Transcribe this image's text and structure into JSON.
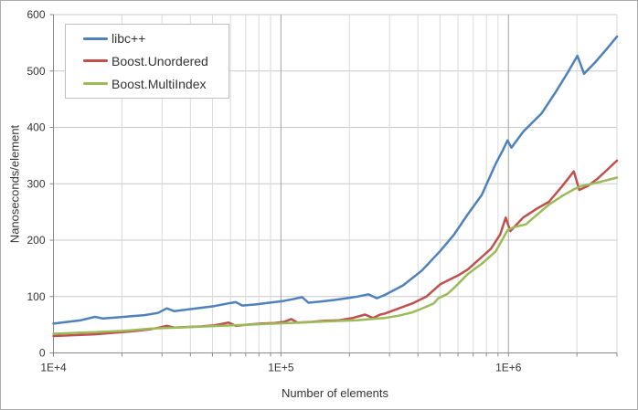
{
  "colors": {
    "background": "#ffffff",
    "chart_border": "#ababab",
    "grid_horizontal": "#c9c9c9",
    "grid_minor": "#dadada",
    "grid_major": "#a3a3a3",
    "axis": "#898989",
    "text": "#333333",
    "legend_border": "#bfbfbf",
    "series_blue": "#4F81BD",
    "series_red": "#C0504D",
    "series_green": "#9BBB59"
  },
  "chart_data": {
    "type": "line",
    "title": "",
    "xlabel": "Number of elements",
    "ylabel": "Nanoseconds/element",
    "x_scale": "log",
    "xlim": [
      10000,
      3000000
    ],
    "ylim": [
      0,
      600
    ],
    "grid": true,
    "legend_position": "top-left",
    "y_ticks": [
      0,
      100,
      200,
      300,
      400,
      500,
      600
    ],
    "x_major_ticks": [
      {
        "value": 10000,
        "label": "1E+4"
      },
      {
        "value": 100000,
        "label": "1E+5"
      },
      {
        "value": 1000000,
        "label": "1E+6"
      }
    ],
    "series": [
      {
        "id": "libcpp",
        "name": "libc++",
        "color": "#4F81BD",
        "points": [
          [
            10000,
            52
          ],
          [
            11500,
            55
          ],
          [
            13200,
            58
          ],
          [
            15200,
            64
          ],
          [
            16500,
            61
          ],
          [
            19000,
            63
          ],
          [
            21800,
            65
          ],
          [
            25100,
            67
          ],
          [
            28800,
            71
          ],
          [
            31500,
            79
          ],
          [
            34000,
            74
          ],
          [
            38600,
            77
          ],
          [
            44400,
            80
          ],
          [
            51000,
            83
          ],
          [
            58800,
            88
          ],
          [
            63300,
            90
          ],
          [
            67600,
            84
          ],
          [
            77500,
            86
          ],
          [
            89000,
            89
          ],
          [
            102000,
            92
          ],
          [
            112000,
            95
          ],
          [
            124000,
            99
          ],
          [
            132000,
            89
          ],
          [
            149000,
            91
          ],
          [
            172000,
            94
          ],
          [
            194000,
            97
          ],
          [
            217000,
            100
          ],
          [
            242000,
            104
          ],
          [
            264000,
            97
          ],
          [
            287000,
            103
          ],
          [
            345000,
            120
          ],
          [
            416000,
            146
          ],
          [
            502000,
            181
          ],
          [
            577000,
            210
          ],
          [
            663000,
            246
          ],
          [
            763000,
            280
          ],
          [
            878000,
            335
          ],
          [
            946000,
            360
          ],
          [
            991000,
            377
          ],
          [
            1030000,
            364
          ],
          [
            1160000,
            392
          ],
          [
            1400000,
            425
          ],
          [
            1610000,
            462
          ],
          [
            1820000,
            497
          ],
          [
            2010000,
            527
          ],
          [
            2150000,
            495
          ],
          [
            2400000,
            515
          ],
          [
            2690000,
            538
          ],
          [
            3000000,
            561
          ]
        ]
      },
      {
        "id": "boost-unordered",
        "name": "Boost.Unordered",
        "color": "#C0504D",
        "points": [
          [
            10000,
            30
          ],
          [
            11500,
            31
          ],
          [
            13200,
            32
          ],
          [
            15200,
            33
          ],
          [
            17500,
            35
          ],
          [
            20100,
            37
          ],
          [
            23100,
            39
          ],
          [
            26600,
            42
          ],
          [
            29200,
            45
          ],
          [
            31500,
            48
          ],
          [
            34000,
            45
          ],
          [
            38600,
            46
          ],
          [
            44400,
            47
          ],
          [
            51000,
            49
          ],
          [
            56000,
            52
          ],
          [
            58800,
            54
          ],
          [
            63300,
            48
          ],
          [
            70800,
            50
          ],
          [
            81400,
            52
          ],
          [
            93700,
            53
          ],
          [
            103000,
            55
          ],
          [
            111000,
            60
          ],
          [
            118000,
            54
          ],
          [
            136000,
            55
          ],
          [
            156000,
            57
          ],
          [
            180000,
            58
          ],
          [
            207000,
            62
          ],
          [
            234000,
            68
          ],
          [
            254000,
            62
          ],
          [
            273000,
            68
          ],
          [
            287000,
            70
          ],
          [
            330000,
            79
          ],
          [
            379000,
            88
          ],
          [
            436000,
            100
          ],
          [
            502000,
            122
          ],
          [
            604000,
            138
          ],
          [
            663000,
            148
          ],
          [
            763000,
            170
          ],
          [
            838000,
            185
          ],
          [
            920000,
            210
          ],
          [
            973000,
            240
          ],
          [
            1019000,
            216
          ],
          [
            1160000,
            240
          ],
          [
            1335000,
            256
          ],
          [
            1507000,
            268
          ],
          [
            1717000,
            295
          ],
          [
            1938000,
            322
          ],
          [
            2050000,
            289
          ],
          [
            2229000,
            296
          ],
          [
            2448000,
            308
          ],
          [
            2690000,
            323
          ],
          [
            3000000,
            341
          ]
        ]
      },
      {
        "id": "boost-multiindex",
        "name": "Boost.MultiIndex",
        "color": "#9BBB59",
        "points": [
          [
            10000,
            34
          ],
          [
            11500,
            35
          ],
          [
            13200,
            36
          ],
          [
            15200,
            37
          ],
          [
            17500,
            38
          ],
          [
            20100,
            39
          ],
          [
            23100,
            41
          ],
          [
            26600,
            43
          ],
          [
            30600,
            44
          ],
          [
            35200,
            45
          ],
          [
            40500,
            46
          ],
          [
            46600,
            47
          ],
          [
            53500,
            48
          ],
          [
            61600,
            49
          ],
          [
            70800,
            50
          ],
          [
            81400,
            51
          ],
          [
            93700,
            52
          ],
          [
            108000,
            53
          ],
          [
            124000,
            54
          ],
          [
            142000,
            55
          ],
          [
            164000,
            56
          ],
          [
            188000,
            57
          ],
          [
            216000,
            58
          ],
          [
            249000,
            60
          ],
          [
            287000,
            62
          ],
          [
            330000,
            66
          ],
          [
            379000,
            72
          ],
          [
            436000,
            82
          ],
          [
            470000,
            88
          ],
          [
            492000,
            97
          ],
          [
            540000,
            105
          ],
          [
            576000,
            115
          ],
          [
            663000,
            140
          ],
          [
            763000,
            158
          ],
          [
            878000,
            180
          ],
          [
            928000,
            197
          ],
          [
            991000,
            218
          ],
          [
            1057000,
            223
          ],
          [
            1194000,
            228
          ],
          [
            1335000,
            245
          ],
          [
            1507000,
            263
          ],
          [
            1733000,
            279
          ],
          [
            1938000,
            290
          ],
          [
            2088000,
            296
          ],
          [
            2336000,
            300
          ],
          [
            2690000,
            306
          ],
          [
            3000000,
            311
          ]
        ]
      }
    ]
  }
}
